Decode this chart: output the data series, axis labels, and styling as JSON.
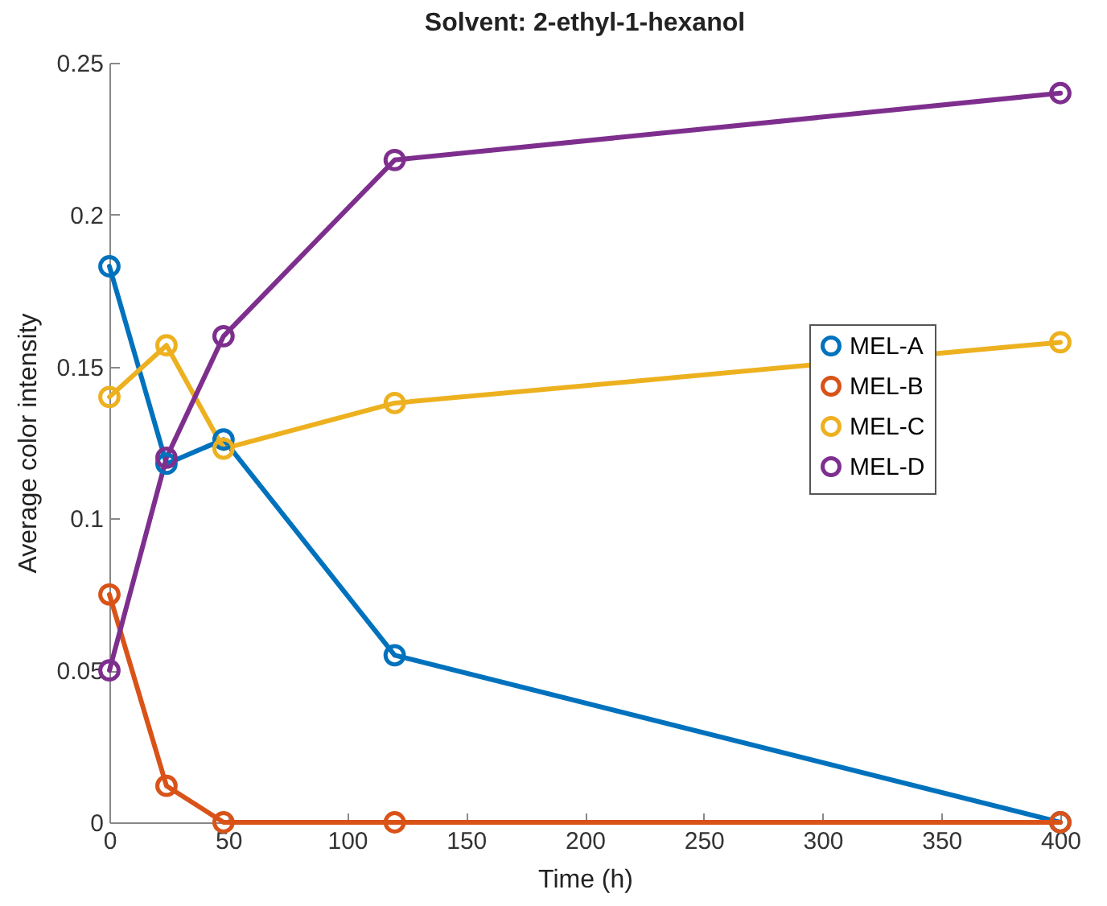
{
  "chart_data": {
    "type": "line",
    "title": "Solvent: 2-ethyl-1-hexanol",
    "xlabel": "Time (h)",
    "ylabel": "Average color intensity",
    "x": [
      0,
      24,
      48,
      120,
      400
    ],
    "series": [
      {
        "name": "MEL-A",
        "color": "#0072bd",
        "values": [
          0.183,
          0.118,
          0.126,
          0.055,
          0
        ]
      },
      {
        "name": "MEL-B",
        "color": "#d95319",
        "values": [
          0.075,
          0.012,
          0,
          0,
          0
        ]
      },
      {
        "name": "MEL-C",
        "color": "#edb120",
        "values": [
          0.14,
          0.157,
          0.123,
          0.138,
          0.158
        ]
      },
      {
        "name": "MEL-D",
        "color": "#7e2f8e",
        "values": [
          0.05,
          0.12,
          0.16,
          0.218,
          0.24
        ]
      }
    ],
    "xlim": [
      0,
      400
    ],
    "xticks": [
      0,
      50,
      100,
      150,
      200,
      250,
      300,
      350,
      400
    ],
    "ylim": [
      0,
      0.25
    ],
    "yticks": [
      0,
      0.05,
      0.1,
      0.15,
      0.2,
      0.25
    ],
    "grid": false,
    "legend": "right",
    "marker": "circle",
    "line_style": "solid"
  }
}
